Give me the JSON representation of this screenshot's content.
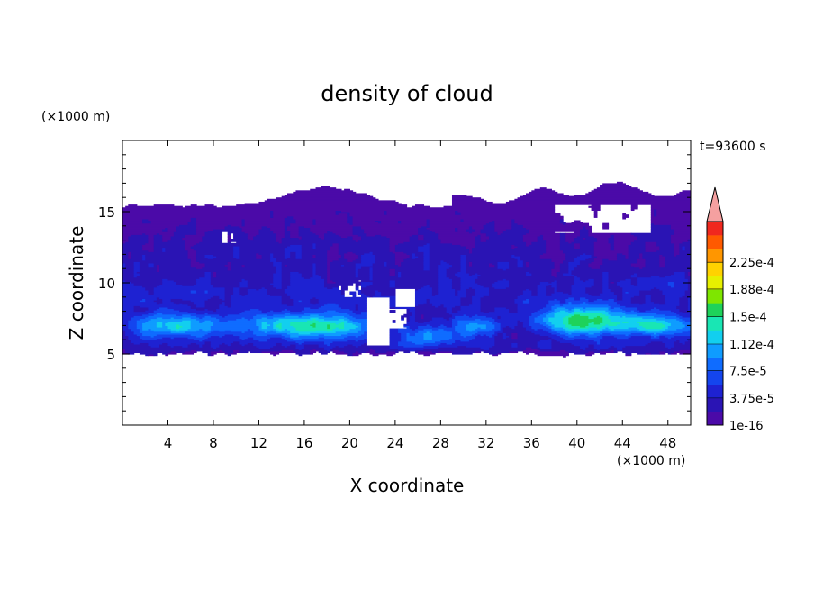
{
  "chart_data": {
    "type": "heatmap",
    "title": "density of cloud",
    "time_label": "t=93600 s",
    "xlabel": "X coordinate",
    "ylabel": "Z coordinate",
    "x_unit": "(×1000 m)",
    "y_unit": "(×1000 m)",
    "xlim": [
      0,
      50
    ],
    "ylim": [
      0,
      20
    ],
    "x_ticks": [
      4,
      8,
      12,
      16,
      20,
      24,
      28,
      32,
      36,
      40,
      44,
      48
    ],
    "y_ticks": [
      5,
      10,
      15
    ],
    "colorbar": {
      "labels": [
        "2.25e-4",
        "1.88e-4",
        "1.5e-4",
        "1.12e-4",
        "7.5e-5",
        "3.75e-5",
        "1e-16"
      ],
      "label_values": [
        0.000225,
        0.000188,
        0.00015,
        0.000112,
        7.5e-05,
        3.75e-05,
        1e-16
      ],
      "levels": [
        1e-16,
        1.875e-05,
        3.75e-05,
        5.625e-05,
        7.5e-05,
        9.375e-05,
        0.0001125,
        0.00013125,
        0.00015,
        0.00016875,
        0.0001875,
        0.00020625,
        0.000225,
        0.00024375
      ],
      "colors": [
        "#4b0aa8",
        "#2a14b4",
        "#1e22d2",
        "#1445ee",
        "#0f6cff",
        "#0f9cff",
        "#12cfef",
        "#19e6b4",
        "#1ed25a",
        "#7ee600",
        "#e6f000",
        "#ffd200",
        "#ff9600",
        "#ff5a00",
        "#f0281e"
      ],
      "overflow_color": "#f5a0a0"
    }
  }
}
